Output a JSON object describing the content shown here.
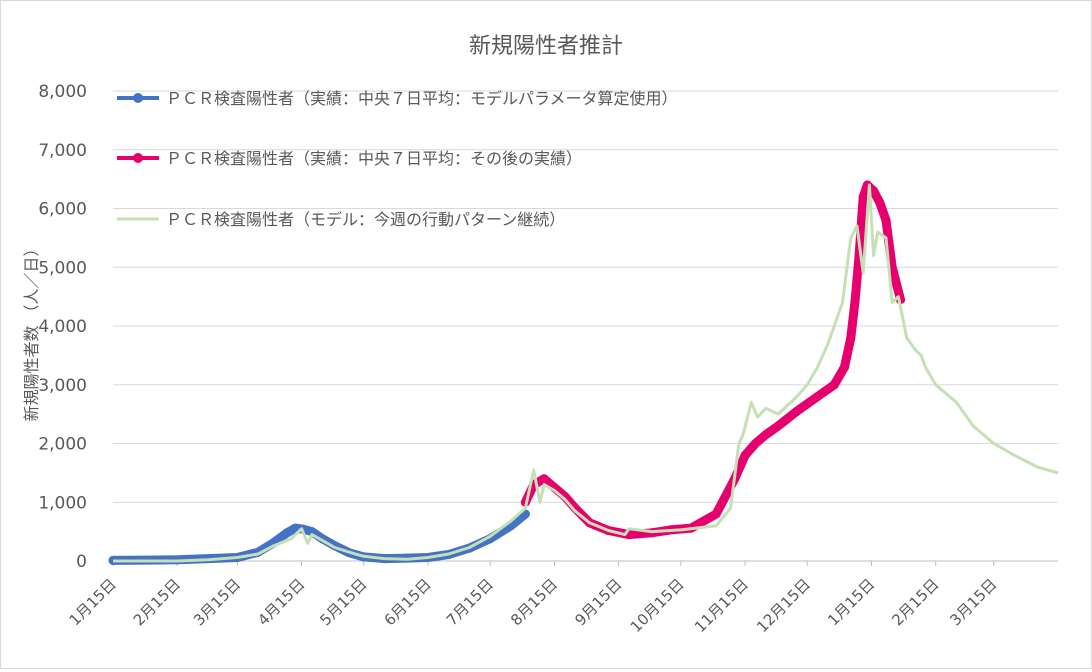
{
  "chart_data": {
    "type": "line",
    "title": "新規陽性者推計",
    "ylabel": "新規陽性者数 （人／日）",
    "xlabel": "",
    "ylim": [
      0,
      8000
    ],
    "yticks": [
      0,
      1000,
      2000,
      3000,
      4000,
      5000,
      6000,
      7000,
      8000
    ],
    "ytick_labels": [
      "0",
      "1,000",
      "2,000",
      "3,000",
      "4,000",
      "5,000",
      "6,000",
      "7,000",
      "8,000"
    ],
    "xlim": [
      "2020-01-15",
      "2021-04-15"
    ],
    "xticks": [
      "2020-01-15",
      "2020-02-15",
      "2020-03-15",
      "2020-04-15",
      "2020-05-15",
      "2020-06-15",
      "2020-07-15",
      "2020-08-15",
      "2020-09-15",
      "2020-10-15",
      "2020-11-15",
      "2020-12-15",
      "2021-01-15",
      "2021-02-15",
      "2021-03-15"
    ],
    "xtick_labels": [
      "1月15日",
      "2月15日",
      "3月15日",
      "4月15日",
      "5月15日",
      "6月15日",
      "7月15日",
      "8月15日",
      "9月15日",
      "10月15日",
      "11月15日",
      "12月15日",
      "1月15日",
      "2月15日",
      "3月15日"
    ],
    "grid": true,
    "legend_position": "top-left",
    "series": [
      {
        "name": "ＰＣＲ検査陽性者（実績：中央７日平均：モデルパラメータ算定使用）",
        "color": "#4472C4",
        "marker": "circle",
        "x": [
          "2020-01-15",
          "2020-02-01",
          "2020-02-15",
          "2020-03-01",
          "2020-03-15",
          "2020-03-25",
          "2020-04-01",
          "2020-04-08",
          "2020-04-12",
          "2020-04-16",
          "2020-04-20",
          "2020-04-25",
          "2020-05-01",
          "2020-05-08",
          "2020-05-15",
          "2020-05-25",
          "2020-06-05",
          "2020-06-15",
          "2020-06-25",
          "2020-07-05",
          "2020-07-15",
          "2020-07-25",
          "2020-08-01"
        ],
        "y": [
          10,
          15,
          20,
          40,
          60,
          150,
          300,
          480,
          560,
          540,
          500,
          380,
          260,
          140,
          70,
          40,
          50,
          60,
          110,
          220,
          380,
          600,
          800
        ]
      },
      {
        "name": "ＰＣＲ検査陽性者（実績：中央７日平均：その後の実績）",
        "color": "#E6006E",
        "marker": "circle",
        "x": [
          "2020-08-01",
          "2020-08-05",
          "2020-08-10",
          "2020-08-15",
          "2020-08-20",
          "2020-08-25",
          "2020-09-01",
          "2020-09-10",
          "2020-09-20",
          "2020-10-01",
          "2020-10-10",
          "2020-10-20",
          "2020-11-01",
          "2020-11-10",
          "2020-11-15",
          "2020-11-20",
          "2020-11-25",
          "2020-12-01",
          "2020-12-10",
          "2020-12-20",
          "2020-12-28",
          "2021-01-02",
          "2021-01-05",
          "2021-01-07",
          "2021-01-09",
          "2021-01-11",
          "2021-01-13",
          "2021-01-16",
          "2021-01-19",
          "2021-01-22",
          "2021-01-25",
          "2021-01-29"
        ],
        "y": [
          1000,
          1300,
          1400,
          1250,
          1100,
          900,
          650,
          520,
          450,
          480,
          530,
          560,
          800,
          1400,
          1800,
          2000,
          2150,
          2300,
          2550,
          2800,
          3000,
          3300,
          3800,
          4400,
          5200,
          6200,
          6400,
          6300,
          6100,
          5800,
          5000,
          4450
        ]
      },
      {
        "name": "ＰＣＲ検査陽性者（モデル：今週の行動パターン継続）",
        "color": "#C5E0B4",
        "marker": "none",
        "x": [
          "2020-01-15",
          "2020-02-15",
          "2020-03-01",
          "2020-03-15",
          "2020-03-25",
          "2020-04-01",
          "2020-04-10",
          "2020-04-15",
          "2020-04-18",
          "2020-04-20",
          "2020-04-25",
          "2020-05-01",
          "2020-05-10",
          "2020-05-15",
          "2020-05-25",
          "2020-06-05",
          "2020-06-15",
          "2020-06-25",
          "2020-07-05",
          "2020-07-15",
          "2020-07-25",
          "2020-08-01",
          "2020-08-05",
          "2020-08-08",
          "2020-08-10",
          "2020-08-15",
          "2020-08-20",
          "2020-08-25",
          "2020-09-01",
          "2020-09-10",
          "2020-09-18",
          "2020-09-20",
          "2020-10-01",
          "2020-10-15",
          "2020-11-01",
          "2020-11-08",
          "2020-11-12",
          "2020-11-14",
          "2020-11-18",
          "2020-11-21",
          "2020-11-25",
          "2020-12-01",
          "2020-12-10",
          "2020-12-15",
          "2020-12-20",
          "2020-12-25",
          "2021-01-01",
          "2021-01-05",
          "2021-01-08",
          "2021-01-11",
          "2021-01-14",
          "2021-01-16",
          "2021-01-18",
          "2021-01-22",
          "2021-01-25",
          "2021-01-28",
          "2021-02-01",
          "2021-02-05",
          "2021-02-08",
          "2021-02-10",
          "2021-02-15",
          "2021-02-25",
          "2021-03-05",
          "2021-03-15",
          "2021-03-25",
          "2021-04-05",
          "2021-04-15"
        ],
        "y": [
          0,
          0,
          20,
          60,
          120,
          250,
          380,
          550,
          300,
          450,
          350,
          230,
          130,
          80,
          40,
          30,
          60,
          120,
          230,
          420,
          680,
          900,
          1550,
          1000,
          1300,
          1200,
          1050,
          850,
          650,
          520,
          450,
          550,
          500,
          530,
          600,
          900,
          2000,
          2150,
          2700,
          2450,
          2600,
          2500,
          2800,
          3000,
          3300,
          3700,
          4400,
          5500,
          5700,
          4900,
          6400,
          5200,
          5600,
          5500,
          4400,
          4500,
          3800,
          3600,
          3500,
          3300,
          3000,
          2700,
          2300,
          2000,
          1800,
          1600,
          1500
        ]
      }
    ]
  }
}
